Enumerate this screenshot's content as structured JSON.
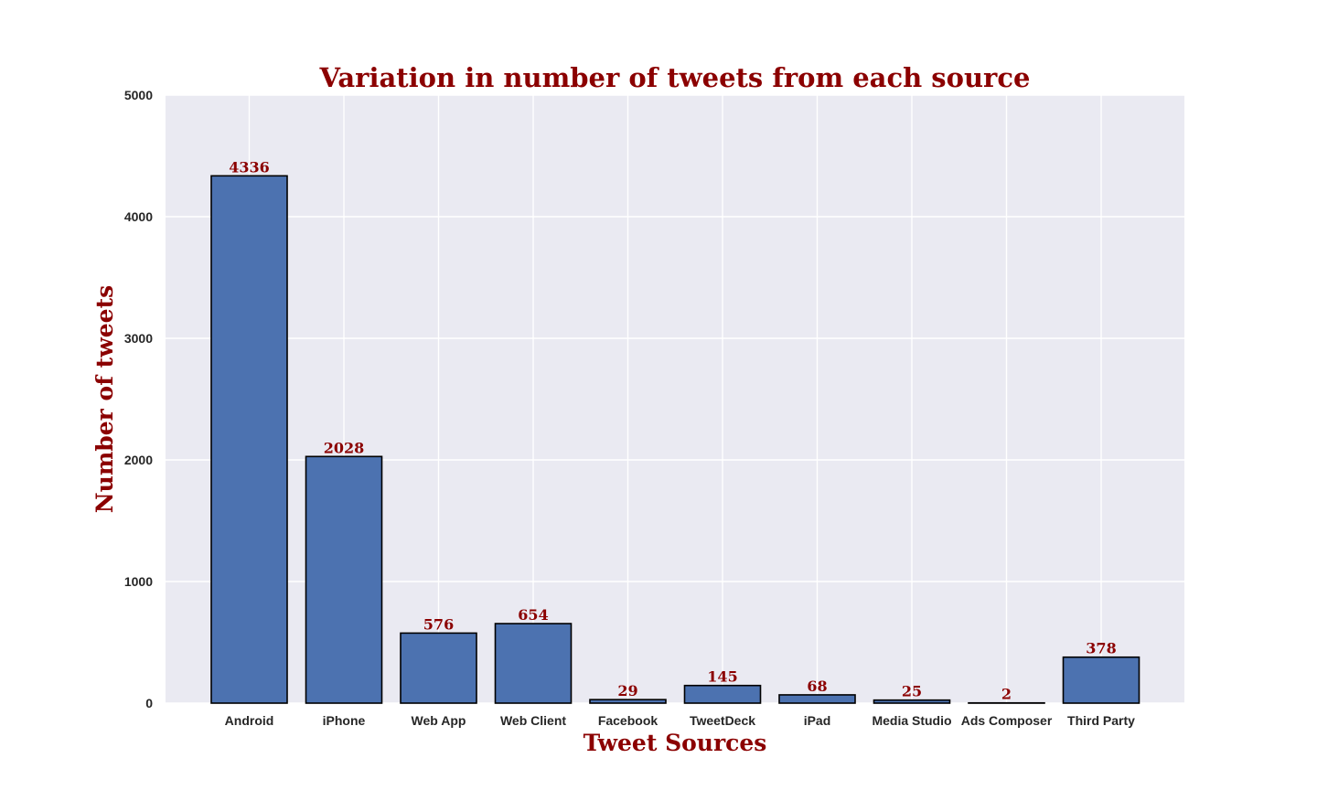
{
  "colors": {
    "plot_background": "#eaeaf2",
    "grid": "#ffffff",
    "bar_fill": "#4c72b0",
    "bar_edge": "#000000",
    "title": "#8b0000",
    "axis_label": "#8b0000",
    "data_label": "#8b0000",
    "tick_label": "#262626"
  },
  "chart_data": {
    "type": "bar",
    "title": "Variation in number of tweets from each source",
    "xlabel": "Tweet Sources",
    "ylabel": "Number of tweets",
    "categories": [
      "Android",
      "iPhone",
      "Web App",
      "Web Client",
      "Facebook",
      "TweetDeck",
      "iPad",
      "Media Studio",
      "Ads Composer",
      "Third Party"
    ],
    "values": [
      4336,
      2028,
      576,
      654,
      29,
      145,
      68,
      25,
      2,
      378
    ],
    "data_labels": [
      "4336",
      "2028",
      "576",
      "654",
      "29",
      "145",
      "68",
      "25",
      "2",
      "378"
    ],
    "ylim": [
      0,
      5000
    ],
    "yticks": [
      0,
      1000,
      2000,
      3000,
      4000,
      5000
    ],
    "ytick_labels": [
      "0",
      "1000",
      "2000",
      "3000",
      "4000",
      "5000"
    ],
    "grid": true,
    "legend": "none"
  }
}
